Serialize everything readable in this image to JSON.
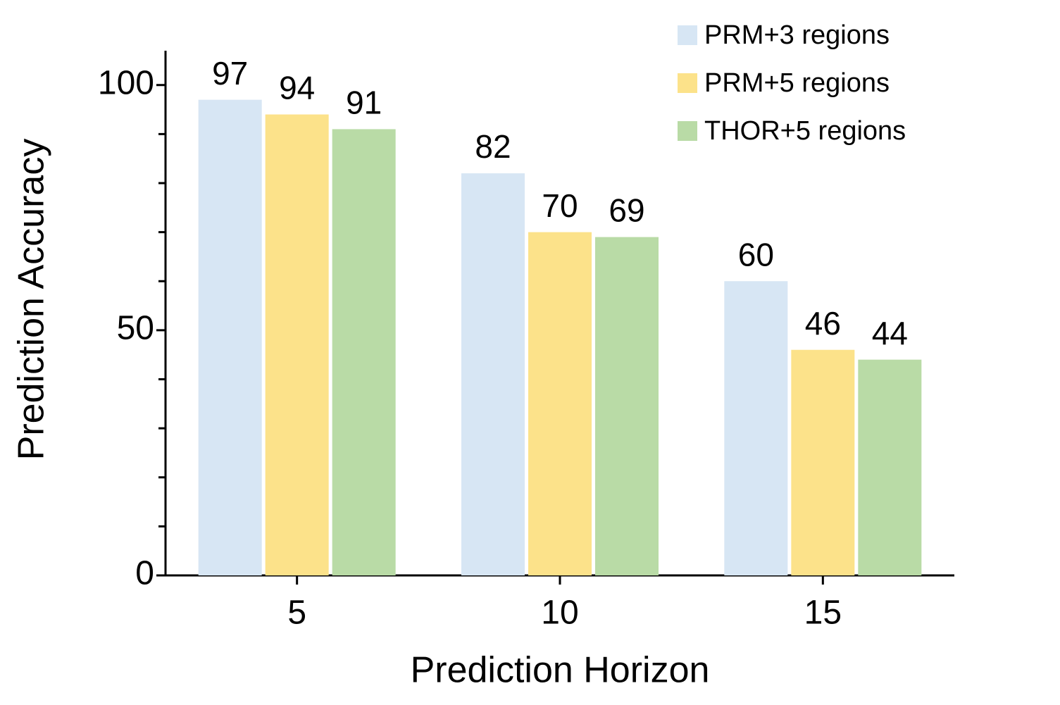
{
  "chart_data": {
    "type": "bar",
    "x_label": "Prediction Horizon",
    "y_label": "Prediction Accuracy",
    "categories": [
      "5",
      "10",
      "15"
    ],
    "series": [
      {
        "name": "PRM+3 regions",
        "color": "#d7e6f4",
        "values": [
          97,
          82,
          60
        ]
      },
      {
        "name": "PRM+5 regions",
        "color": "#fce28a",
        "values": [
          94,
          70,
          46
        ]
      },
      {
        "name": "THOR+5 regions",
        "color": "#b9dba6",
        "values": [
          91,
          69,
          44
        ]
      }
    ],
    "ylim": [
      0,
      107
    ],
    "yticks": [
      0,
      50,
      100
    ],
    "yminor_ticks": [
      10,
      20,
      30,
      40,
      60,
      70,
      80,
      90
    ],
    "legend": "top-right",
    "grid": false
  }
}
